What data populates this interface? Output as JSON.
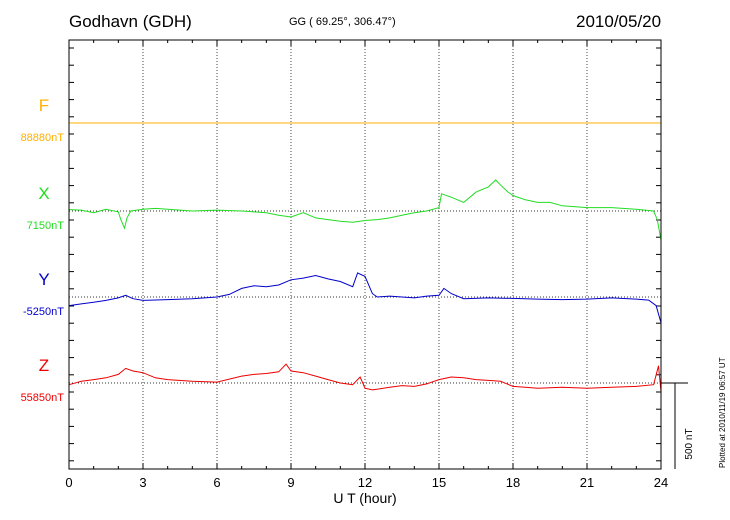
{
  "header": {
    "station": "Godhavn (GDH)",
    "coords": "GG ( 69.25°, 306.47°)",
    "date": "2010/05/20"
  },
  "footer": {
    "plotted": "Plotted at 2010/11/19 06:57 UT"
  },
  "chart_data": {
    "type": "line",
    "title": "Godhavn (GDH)",
    "xlabel": "U T (hour)",
    "xlim": [
      0,
      24
    ],
    "xticks": [
      "0",
      "3",
      "6",
      "9",
      "12",
      "15",
      "18",
      "21",
      "24"
    ],
    "scale_bar": {
      "label": "500 nT",
      "value": 500
    },
    "grid": "dotted vertical at every 3 h; dotted baseline per component",
    "colors": {
      "F": "#ffb000",
      "X": "#22dd22",
      "Y": "#0000cc",
      "Z": "#ee0000"
    },
    "series": [
      {
        "name": "F",
        "baseline_label": "88880nT",
        "baseline": 88880,
        "x": [
          0,
          3,
          6,
          9,
          12,
          15,
          18,
          21,
          24
        ],
        "y": [
          88880,
          88880,
          88880,
          88880,
          88880,
          88880,
          88880,
          88880,
          88880
        ]
      },
      {
        "name": "X",
        "baseline_label": "7150nT",
        "baseline": 7150,
        "x": [
          0,
          0.5,
          1,
          1.5,
          2,
          2.1,
          2.25,
          2.35,
          2.5,
          3,
          3.5,
          4,
          5,
          6,
          7,
          7.5,
          8,
          8.5,
          9,
          9.5,
          10,
          10.5,
          11,
          11.5,
          12,
          12.5,
          13,
          13.5,
          14,
          14.5,
          15,
          15.1,
          15.5,
          16,
          16.5,
          17,
          17.3,
          17.5,
          17.8,
          18,
          18.5,
          19,
          19.5,
          20,
          21,
          22,
          23,
          23.7,
          23.85,
          24
        ],
        "y": [
          7158,
          7155,
          7140,
          7160,
          7145,
          7100,
          7050,
          7110,
          7150,
          7160,
          7165,
          7160,
          7150,
          7155,
          7150,
          7145,
          7140,
          7125,
          7115,
          7140,
          7110,
          7100,
          7090,
          7085,
          7095,
          7100,
          7110,
          7125,
          7140,
          7150,
          7170,
          7250,
          7230,
          7200,
          7260,
          7290,
          7330,
          7300,
          7260,
          7240,
          7215,
          7200,
          7200,
          7180,
          7170,
          7170,
          7160,
          7150,
          7100,
          6980
        ]
      },
      {
        "name": "Y",
        "baseline_label": "-5250nT",
        "baseline": -5250,
        "x": [
          0,
          0.5,
          1,
          1.5,
          2,
          2.3,
          2.6,
          3,
          4,
          5,
          6,
          6.5,
          7,
          7.5,
          8,
          8.5,
          9,
          9.5,
          10,
          10.5,
          11,
          11.5,
          11.7,
          12,
          12.3,
          12.5,
          13,
          13.5,
          14,
          14.5,
          15,
          15.2,
          15.5,
          16,
          17,
          18,
          19,
          20,
          21,
          22,
          23,
          23.5,
          23.8,
          24
        ],
        "y": [
          -5300,
          -5290,
          -5280,
          -5270,
          -5255,
          -5240,
          -5260,
          -5270,
          -5265,
          -5260,
          -5250,
          -5235,
          -5200,
          -5185,
          -5190,
          -5180,
          -5150,
          -5140,
          -5125,
          -5145,
          -5160,
          -5190,
          -5110,
          -5130,
          -5230,
          -5250,
          -5245,
          -5250,
          -5255,
          -5245,
          -5240,
          -5200,
          -5230,
          -5260,
          -5255,
          -5258,
          -5262,
          -5265,
          -5262,
          -5255,
          -5262,
          -5268,
          -5300,
          -5400
        ]
      },
      {
        "name": "Z",
        "baseline_label": "55850nT",
        "baseline": 55850,
        "x": [
          0,
          0.5,
          1,
          1.5,
          2,
          2.3,
          2.6,
          3,
          3.5,
          4,
          5,
          6,
          7,
          7.5,
          8,
          8.5,
          8.8,
          9,
          9.5,
          10,
          10.5,
          11,
          11.5,
          11.8,
          12,
          12.3,
          13,
          13.5,
          14,
          14.5,
          15,
          15.5,
          16,
          16.5,
          17,
          17.5,
          18,
          18.5,
          19,
          19.5,
          20,
          21,
          22,
          23,
          23.7,
          23.9,
          24
        ],
        "y": [
          55840,
          55860,
          55870,
          55880,
          55900,
          55935,
          55920,
          55910,
          55880,
          55870,
          55860,
          55855,
          55890,
          55900,
          55905,
          55915,
          55960,
          55920,
          55910,
          55890,
          55870,
          55850,
          55840,
          55885,
          55820,
          55810,
          55825,
          55835,
          55830,
          55845,
          55870,
          55885,
          55880,
          55870,
          55865,
          55860,
          55830,
          55825,
          55820,
          55822,
          55825,
          55820,
          55825,
          55830,
          55840,
          55950,
          55800
        ]
      }
    ]
  }
}
